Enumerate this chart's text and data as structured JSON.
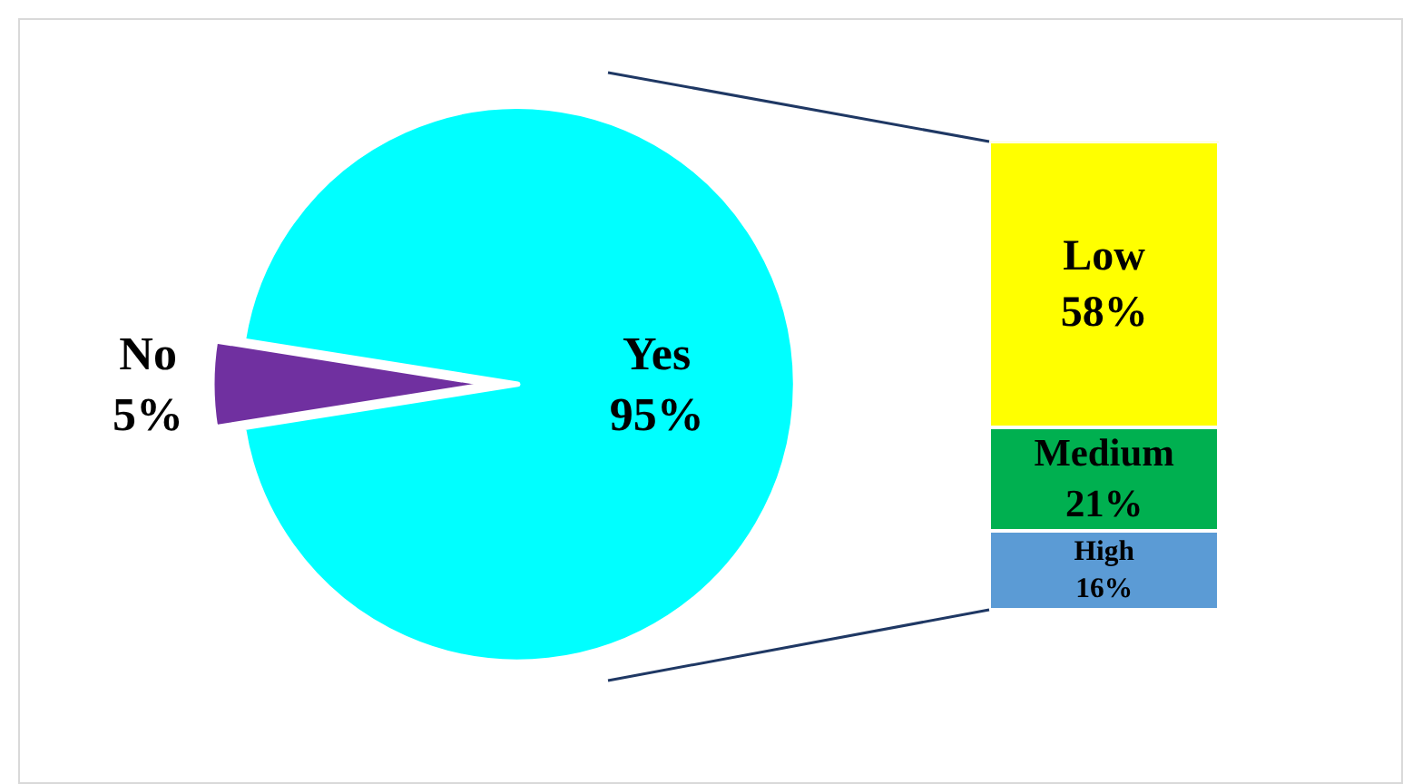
{
  "chart_data": [
    {
      "type": "pie",
      "categories": [
        "No",
        "Yes"
      ],
      "values": [
        5,
        95
      ],
      "value_labels": [
        "5%",
        "95%"
      ],
      "colors": [
        "#7030a0",
        "#00ffff"
      ],
      "legend": false
    },
    {
      "type": "bar",
      "stacked": true,
      "categories": [
        null
      ],
      "legend": false,
      "series": [
        {
          "name": "High",
          "color": "#5b9bd5",
          "values": [
            16
          ],
          "value_labels": [
            "16%"
          ]
        },
        {
          "name": "Medium",
          "color": "#00b050",
          "values": [
            21
          ],
          "value_labels": [
            "21%"
          ]
        },
        {
          "name": "Low",
          "color": "#ffff00",
          "values": [
            58
          ],
          "value_labels": [
            "58%"
          ]
        }
      ]
    }
  ]
}
